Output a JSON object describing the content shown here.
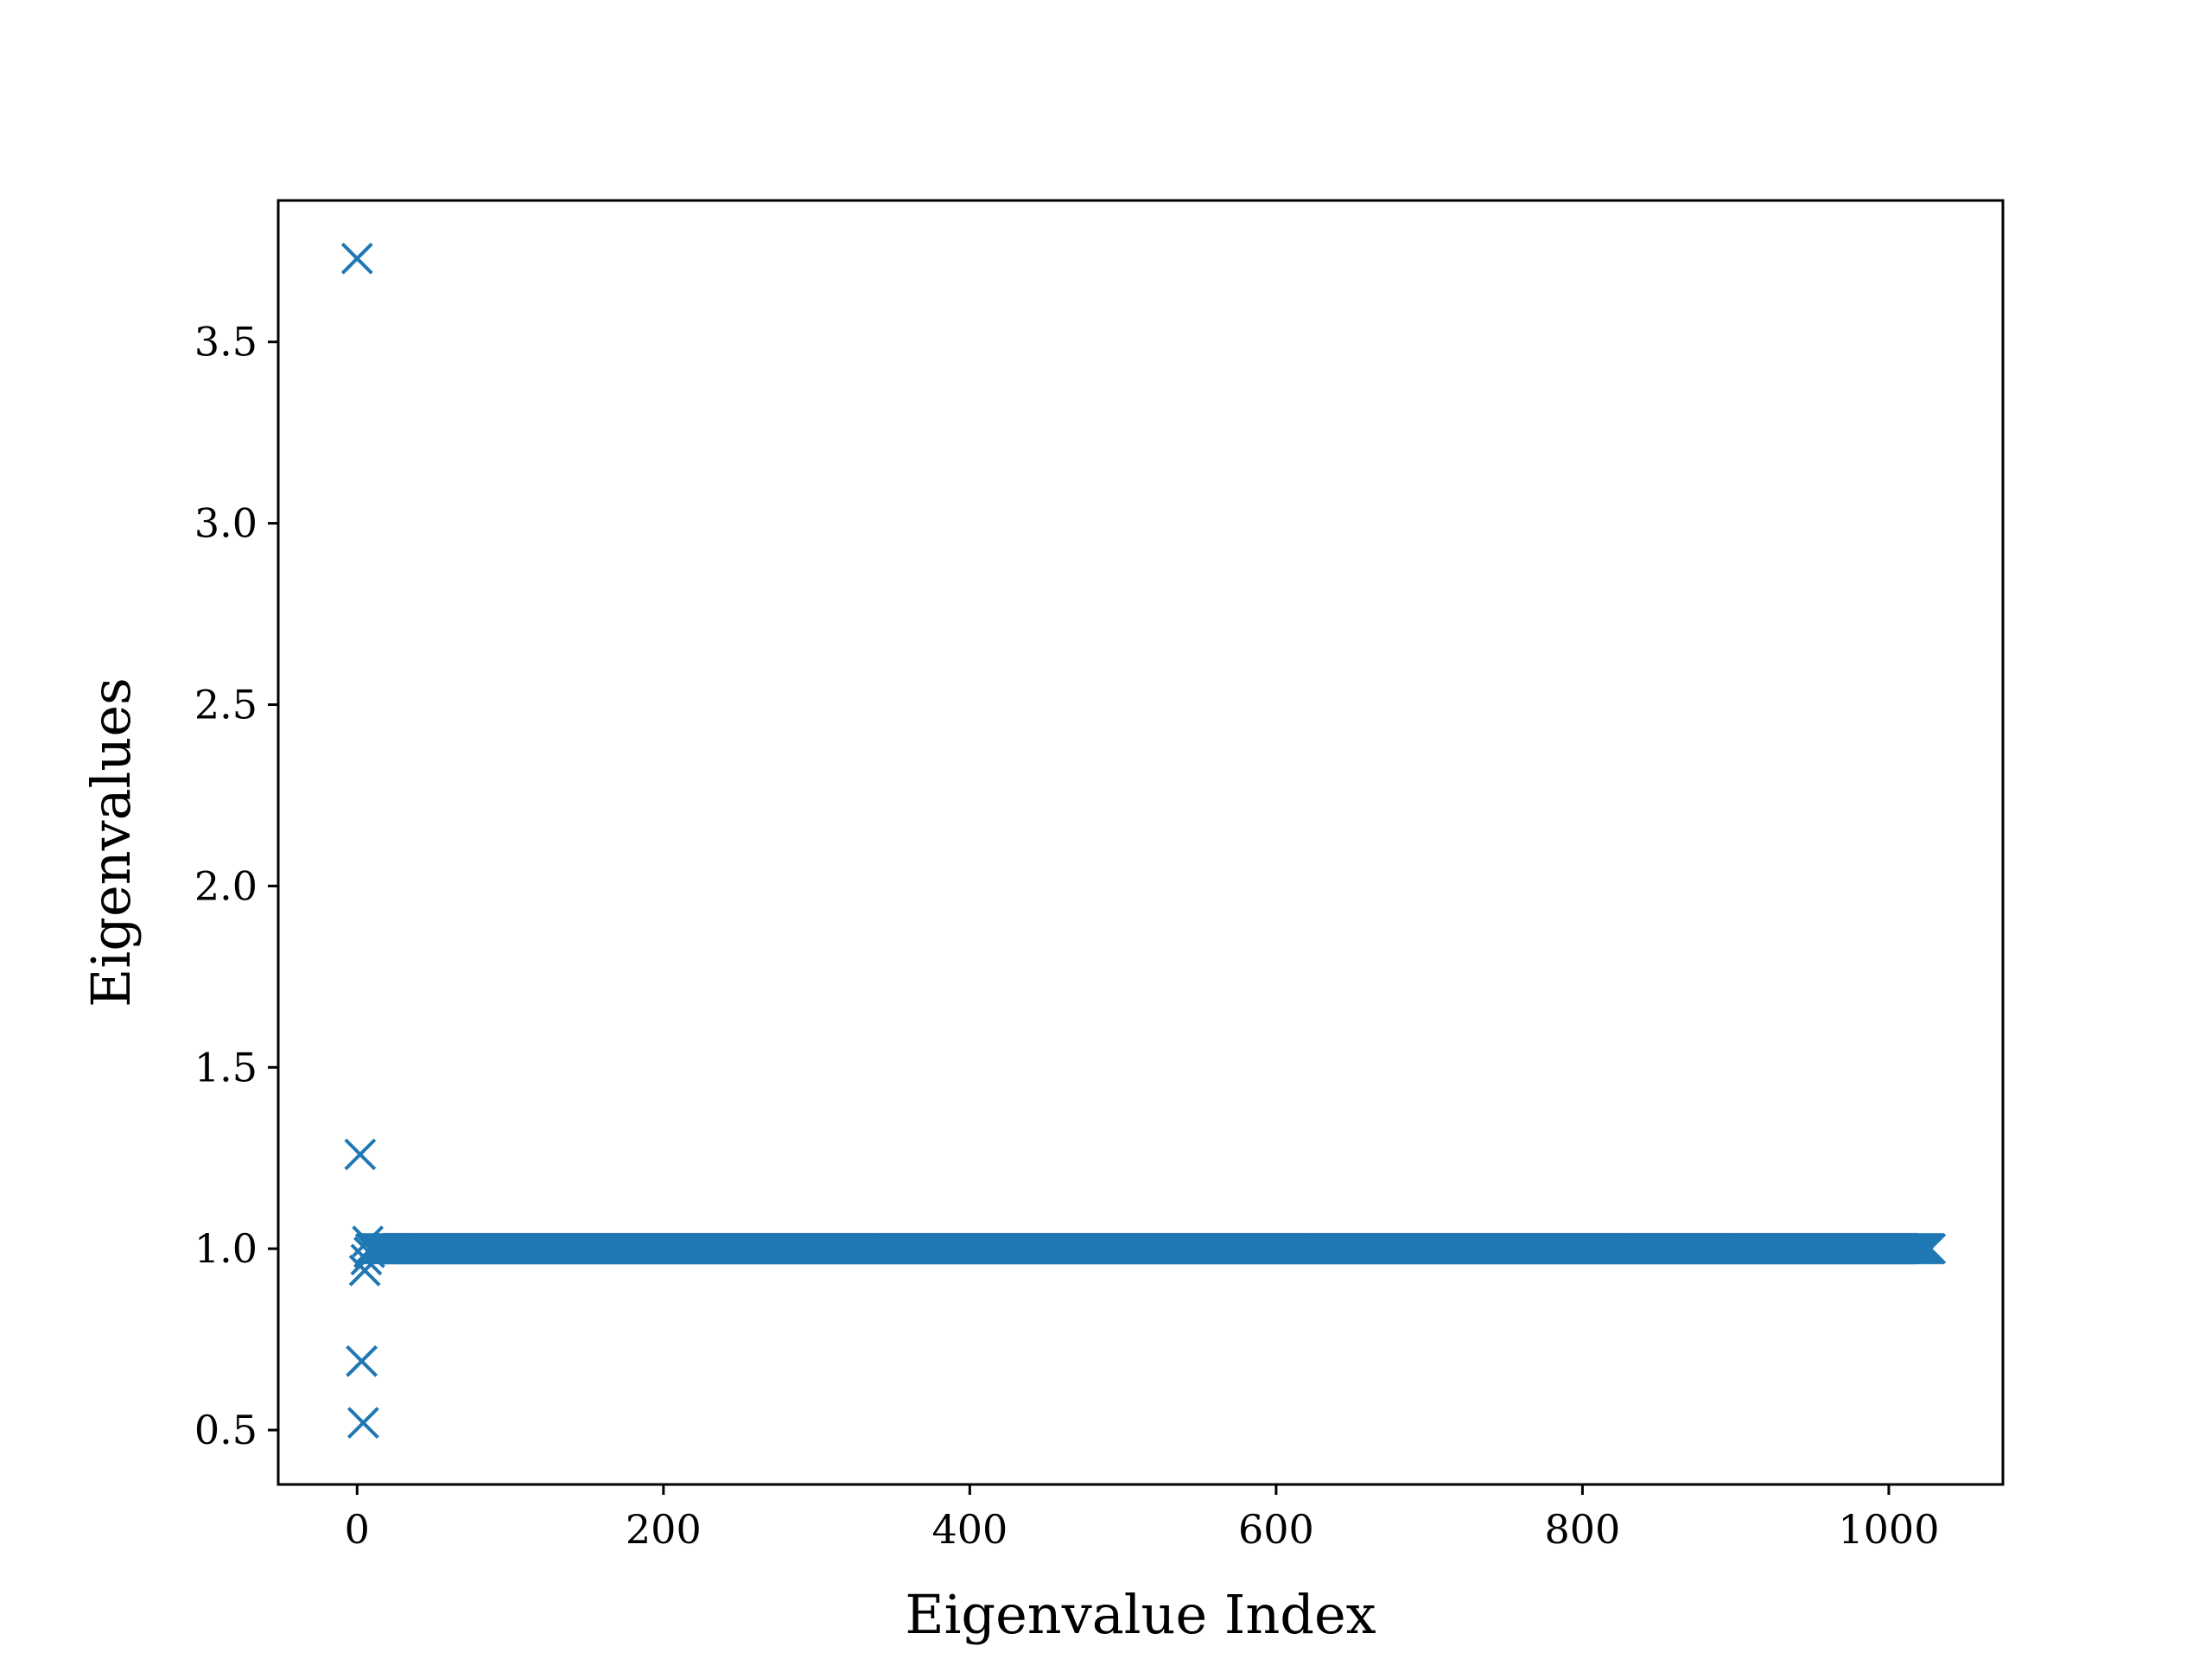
{
  "chart_data": {
    "type": "scatter",
    "title": "",
    "xlabel": "Eigenvalue Index",
    "ylabel": "Eigenvalues",
    "xlim": [
      -51.5,
      1074.5
    ],
    "ylim": [
      0.35,
      3.89
    ],
    "xticks": [
      0,
      200,
      400,
      600,
      800,
      1000
    ],
    "xtick_labels": [
      "0",
      "200",
      "400",
      "600",
      "800",
      "1000"
    ],
    "yticks": [
      0.5,
      1.0,
      1.5,
      2.0,
      2.5,
      3.0,
      3.5
    ],
    "ytick_labels": [
      "0.5",
      "1.0",
      "1.5",
      "2.0",
      "2.5",
      "3.0",
      "3.5"
    ],
    "grid": false,
    "legend": "none",
    "marker": "x",
    "color": "#1f77b4",
    "series": [
      {
        "outliers": {
          "x": [
            0,
            2,
            3,
            4,
            5,
            6,
            7,
            8
          ],
          "y": [
            3.73,
            1.26,
            0.69,
            0.52,
            0.94,
            0.97,
            1.02,
            0.99
          ]
        },
        "bulk": {
          "x_start": 9,
          "x_end": 1027,
          "y": 1.0
        }
      }
    ]
  }
}
